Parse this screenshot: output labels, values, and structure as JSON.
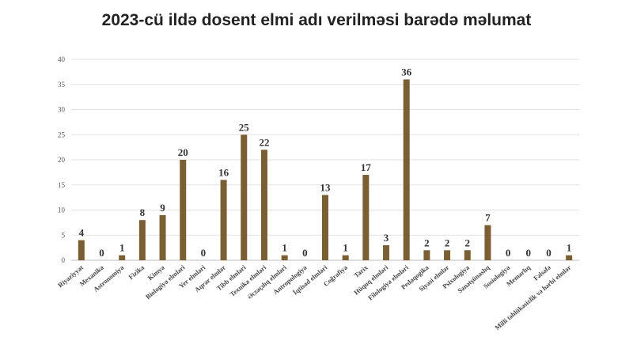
{
  "chart_data": {
    "type": "bar",
    "title": "2023-cü ildə dosent elmi adı verilməsi barədə məlumat",
    "categories": [
      "Riyaziyyat",
      "Mexanika",
      "Astronomiya",
      "Fizika",
      "Kimya",
      "Biologiya elmləri",
      "Yer elmləri",
      "Aqrar elmlər",
      "Tibb elmləri",
      "Texnika elmləri",
      "Əczaçılıq elmləri",
      "Antropologiya",
      "İqtisad elmləri",
      "Coğrafiya",
      "Tarix",
      "Hüquq elmləri",
      "Filologiya elmləri",
      "Pedaqogika",
      "Siyasi elmlər",
      "Psixologiya",
      "Sənətşünaslıq",
      "Sosiologiya",
      "Memarlıq",
      "Fəlsəfə",
      "Milli təhlükəsizlik və hərbi elmlər"
    ],
    "values": [
      4,
      0,
      1,
      8,
      9,
      20,
      0,
      16,
      25,
      22,
      1,
      0,
      13,
      1,
      17,
      3,
      36,
      2,
      2,
      2,
      7,
      0,
      0,
      0,
      1
    ],
    "ylim": [
      0,
      40
    ],
    "yticks": [
      0,
      5,
      10,
      15,
      20,
      25,
      30,
      35,
      40
    ],
    "grid": true,
    "bar_color": "#7b5f34"
  }
}
